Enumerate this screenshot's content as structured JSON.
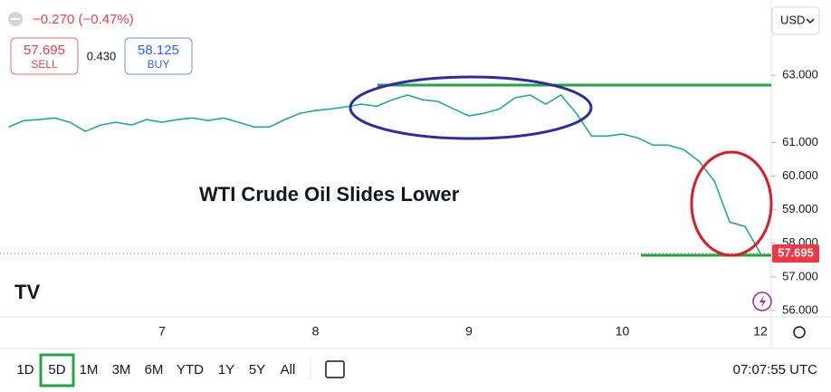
{
  "ui": {
    "change": "−0.270 (−0.47%)",
    "sell": {
      "price": "57.695",
      "label": "SELL"
    },
    "spread": "0.430",
    "buy": {
      "price": "58.125",
      "label": "BUY"
    },
    "currency": "USD",
    "timeframes": [
      "1D",
      "5D",
      "1M",
      "3M",
      "6M",
      "YTD",
      "1Y",
      "5Y",
      "All"
    ],
    "selected_timeframe": 1,
    "clock": "07:07:55 UTC"
  },
  "chart_data": {
    "type": "line",
    "annotation": "WTI Crude Oil Slides Lower",
    "color": "#26a69a",
    "categories": [
      null,
      null,
      null,
      null,
      null,
      null,
      null,
      null,
      null,
      null,
      "7",
      null,
      null,
      null,
      null,
      null,
      null,
      null,
      null,
      null,
      "8",
      null,
      null,
      null,
      null,
      null,
      null,
      null,
      null,
      null,
      "9",
      null,
      null,
      null,
      null,
      null,
      null,
      null,
      null,
      null,
      "10",
      null,
      null,
      null,
      null,
      null,
      null,
      null,
      null,
      "12"
    ],
    "values": [
      61.46,
      61.65,
      61.68,
      61.73,
      61.6,
      61.33,
      61.52,
      61.6,
      61.52,
      61.68,
      61.6,
      61.68,
      61.73,
      61.65,
      61.73,
      61.6,
      61.46,
      61.46,
      61.68,
      61.87,
      61.95,
      62.0,
      62.06,
      62.14,
      62.08,
      62.27,
      62.41,
      62.27,
      62.22,
      62.0,
      61.79,
      61.87,
      62.0,
      62.33,
      62.41,
      62.14,
      62.41,
      61.87,
      61.19,
      61.19,
      61.25,
      61.14,
      60.92,
      60.92,
      60.79,
      60.44,
      59.85,
      58.63,
      58.5,
      57.695
    ],
    "ylim": [
      55.81,
      65.24
    ],
    "yticks": [
      {
        "value": 56,
        "label": "56.000"
      },
      {
        "value": 57,
        "label": "57.000"
      },
      {
        "value": 58,
        "label": "58.000"
      },
      {
        "value": 59,
        "label": "59.000"
      },
      {
        "value": 60,
        "label": "60.000"
      },
      {
        "value": 61,
        "label": "61.000"
      },
      {
        "value": 63,
        "label": "63.000"
      }
    ]
  }
}
